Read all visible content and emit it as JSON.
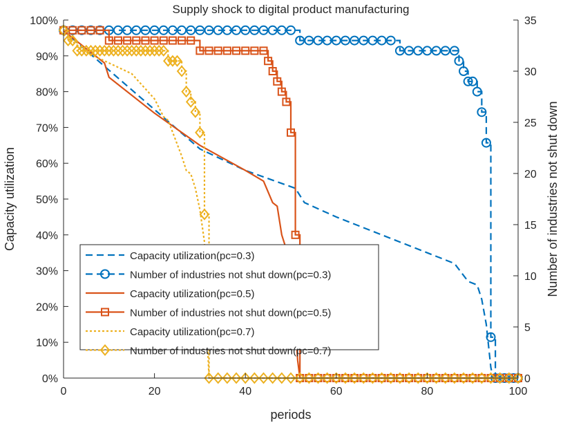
{
  "chart_data": {
    "type": "line",
    "title": "Supply shock to digital product manufacturing",
    "xlabel": "periods",
    "ylabel_left": "Capacity utilization",
    "ylabel_right": "Number of industries not shut down",
    "xlim": [
      0,
      100
    ],
    "ylim_left": [
      0,
      100
    ],
    "ylim_right": [
      0,
      35
    ],
    "xticks": [
      "0",
      "20",
      "40",
      "60",
      "80",
      "100"
    ],
    "yticks_left": [
      "0%",
      "10%",
      "20%",
      "30%",
      "40%",
      "50%",
      "60%",
      "70%",
      "80%",
      "90%",
      "100%"
    ],
    "yticks_right": [
      "0",
      "5",
      "10",
      "15",
      "20",
      "25",
      "30",
      "35"
    ],
    "grid": false,
    "legend_position": "bottom-left",
    "colors": {
      "pc03": "#0072BD",
      "pc05": "#D95319",
      "pc07": "#EDB120"
    },
    "series": [
      {
        "name": "Capacity utilization(pc=0.3)",
        "axis": "left",
        "style": "dashed",
        "marker": "none",
        "color": "#0072BD",
        "x": [
          0,
          10,
          20,
          30,
          40,
          51,
          53,
          60,
          70,
          80,
          86,
          89,
          91,
          92,
          93,
          94,
          94.5,
          100
        ],
        "y": [
          97,
          86,
          75,
          64,
          58,
          53,
          49,
          45,
          40,
          35,
          32,
          27,
          26,
          22,
          15,
          3,
          0,
          0
        ]
      },
      {
        "name": "Number of industries not shut down(pc=0.3)",
        "axis": "right",
        "style": "dashed",
        "marker": "circle",
        "color": "#0072BD",
        "x": [
          0,
          2,
          4,
          6,
          8,
          10,
          12,
          14,
          16,
          18,
          20,
          22,
          24,
          26,
          28,
          30,
          32,
          34,
          36,
          38,
          40,
          42,
          44,
          46,
          48,
          50,
          52,
          54,
          56,
          58,
          60,
          62,
          64,
          66,
          68,
          70,
          72,
          74,
          76,
          78,
          80,
          82,
          84,
          86,
          87,
          88,
          89,
          90,
          91,
          92,
          93,
          94,
          95,
          96,
          97,
          98,
          99,
          100
        ],
        "y": [
          34,
          34,
          34,
          34,
          34,
          34,
          34,
          34,
          34,
          34,
          34,
          34,
          34,
          34,
          34,
          34,
          34,
          34,
          34,
          34,
          34,
          34,
          34,
          34,
          34,
          34,
          33,
          33,
          33,
          33,
          33,
          33,
          33,
          33,
          33,
          33,
          33,
          32,
          32,
          32,
          32,
          32,
          32,
          32,
          31,
          30,
          29,
          29,
          28,
          26,
          23,
          4,
          0,
          0,
          0,
          0,
          0,
          0
        ]
      },
      {
        "name": "Capacity utilization(pc=0.5)",
        "axis": "left",
        "style": "solid",
        "marker": "none",
        "color": "#D95319",
        "x": [
          0,
          9,
          10,
          20,
          30,
          40,
          44,
          46,
          47,
          48,
          50,
          51,
          51.5,
          52,
          100
        ],
        "y": [
          97,
          88,
          84,
          74,
          65,
          58,
          55,
          49,
          48,
          40,
          32,
          15,
          5,
          0,
          0
        ],
        "_note": ""
      },
      {
        "name": "Number of industries not shut down(pc=0.5)",
        "axis": "right",
        "style": "solid",
        "marker": "square",
        "color": "#D95319",
        "x": [
          0,
          2,
          4,
          6,
          8,
          10,
          12,
          14,
          16,
          18,
          20,
          22,
          24,
          26,
          28,
          30,
          32,
          34,
          36,
          38,
          40,
          42,
          44,
          45,
          46,
          47,
          48,
          49,
          50,
          51,
          52,
          54,
          56,
          58,
          60,
          62,
          64,
          66,
          68,
          70,
          72,
          74,
          76,
          78,
          80,
          82,
          84,
          86,
          88,
          90,
          92,
          94,
          96,
          98,
          100
        ],
        "y": [
          34,
          34,
          34,
          34,
          34,
          33,
          33,
          33,
          33,
          33,
          33,
          33,
          33,
          33,
          33,
          32,
          32,
          32,
          32,
          32,
          32,
          32,
          32,
          31,
          30,
          29,
          28,
          27,
          24,
          14,
          0,
          0,
          0,
          0,
          0,
          0,
          0,
          0,
          0,
          0,
          0,
          0,
          0,
          0,
          0,
          0,
          0,
          0,
          0,
          0,
          0,
          0,
          0,
          0,
          0
        ]
      },
      {
        "name": "Capacity utilization(pc=0.7)",
        "axis": "left",
        "style": "dotted",
        "marker": "none",
        "color": "#EDB120",
        "x": [
          0,
          5,
          10,
          15,
          20,
          22,
          23,
          26,
          27,
          28,
          29,
          30,
          31,
          31.5,
          32,
          100
        ],
        "y": [
          96,
          91,
          88,
          85,
          78,
          73,
          72,
          62,
          58,
          57,
          53,
          47,
          38,
          15,
          0,
          0
        ]
      },
      {
        "name": "Number of industries not shut down(pc=0.7)",
        "axis": "right",
        "style": "dotted",
        "marker": "diamond",
        "color": "#EDB120",
        "x": [
          0,
          1,
          2,
          3,
          4,
          5,
          6,
          7,
          8,
          9,
          10,
          11,
          12,
          13,
          14,
          15,
          16,
          17,
          18,
          19,
          20,
          21,
          22,
          23,
          24,
          25,
          26,
          27,
          28,
          29,
          30,
          31,
          32,
          34,
          36,
          38,
          40,
          42,
          44,
          46,
          48,
          50,
          52,
          54,
          56,
          58,
          60,
          62,
          64,
          66,
          68,
          70,
          72,
          74,
          76,
          78,
          80,
          82,
          84,
          86,
          88,
          90,
          92,
          94,
          96,
          98,
          100
        ],
        "y": [
          34,
          33,
          33,
          32,
          32,
          32,
          32,
          32,
          32,
          32,
          32,
          32,
          32,
          32,
          32,
          32,
          32,
          32,
          32,
          32,
          32,
          32,
          32,
          31,
          31,
          31,
          30,
          28,
          27,
          26,
          24,
          16,
          0,
          0,
          0,
          0,
          0,
          0,
          0,
          0,
          0,
          0,
          0,
          0,
          0,
          0,
          0,
          0,
          0,
          0,
          0,
          0,
          0,
          0,
          0,
          0,
          0,
          0,
          0,
          0,
          0,
          0,
          0,
          0,
          0,
          0,
          0
        ]
      }
    ]
  }
}
